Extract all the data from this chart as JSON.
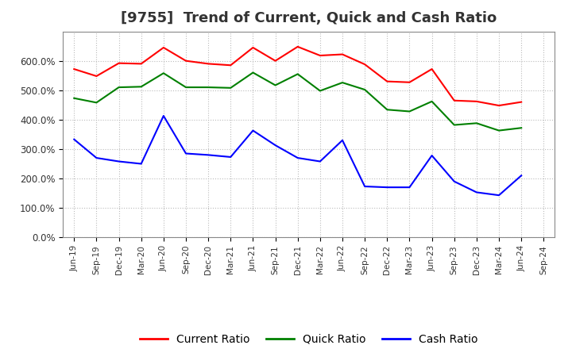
{
  "title": "[9755]  Trend of Current, Quick and Cash Ratio",
  "x_labels": [
    "Jun-19",
    "Sep-19",
    "Dec-19",
    "Mar-20",
    "Jun-20",
    "Sep-20",
    "Dec-20",
    "Mar-21",
    "Jun-21",
    "Sep-21",
    "Dec-21",
    "Mar-22",
    "Jun-22",
    "Sep-22",
    "Dec-22",
    "Mar-23",
    "Jun-23",
    "Sep-23",
    "Dec-23",
    "Mar-24",
    "Jun-24",
    "Sep-24"
  ],
  "current_ratio": [
    572,
    548,
    592,
    590,
    645,
    600,
    590,
    585,
    645,
    600,
    648,
    618,
    622,
    588,
    530,
    527,
    572,
    465,
    462,
    448,
    460,
    null
  ],
  "quick_ratio": [
    473,
    458,
    510,
    512,
    558,
    510,
    510,
    508,
    560,
    517,
    555,
    498,
    526,
    502,
    434,
    428,
    462,
    382,
    388,
    363,
    372,
    null
  ],
  "cash_ratio": [
    333,
    270,
    258,
    250,
    413,
    285,
    280,
    273,
    363,
    313,
    270,
    258,
    330,
    173,
    170,
    170,
    278,
    190,
    153,
    143,
    210,
    null
  ],
  "current_color": "#ff0000",
  "quick_color": "#008000",
  "cash_color": "#0000ff",
  "ylim": [
    0,
    700
  ],
  "yticks": [
    0,
    100,
    200,
    300,
    400,
    500,
    600
  ],
  "ytick_labels": [
    "0.0%",
    "100.0%",
    "200.0%",
    "300.0%",
    "400.0%",
    "500.0%",
    "600.0%"
  ],
  "grid_color": "#bbbbbb",
  "bg_color": "#ffffff",
  "plot_bg_color": "#ffffff",
  "legend_labels": [
    "Current Ratio",
    "Quick Ratio",
    "Cash Ratio"
  ],
  "line_width": 1.5,
  "title_color": "#333333",
  "title_fontsize": 13
}
